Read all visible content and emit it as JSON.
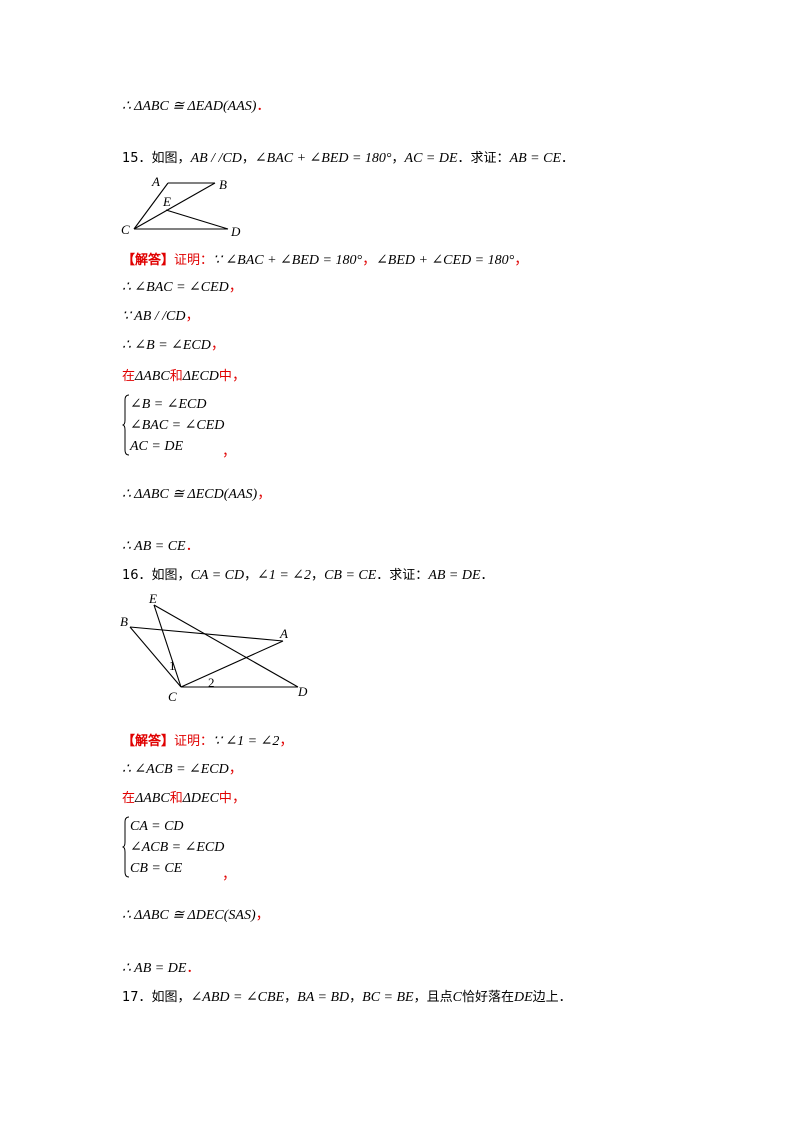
{
  "page": {
    "line_aas_prev": "∴ ΔABC ≅ ΔEAD(AAS)",
    "q15": {
      "number": "15．",
      "intro": "如图，",
      "given1": "AB / /CD",
      "given2": "∠BAC + ∠BED = 180°",
      "given3": "AC = DE",
      "prove_label": "．求证：",
      "prove": "AB = CE",
      "end": "．",
      "figure_labels": {
        "A": "A",
        "B": "B",
        "C": "C",
        "D": "D",
        "E": "E"
      },
      "answer_tag": "【解答】",
      "answer_prefix": "证明：",
      "s1a": "∵ ∠BAC + ∠BED = 180°",
      "s1b": "∠BED + ∠CED = 180°",
      "s2": "∴ ∠BAC = ∠CED",
      "s3": "∵ AB / /CD",
      "s4": "∴ ∠B = ∠ECD",
      "in_word": "在",
      "tri1": "ΔABC",
      "and_word": "和",
      "tri2": "ΔECD",
      "zhong": "中",
      "sys": [
        "∠B = ∠ECD",
        "∠BAC = ∠CED",
        "AC = DE"
      ],
      "concl": "∴ ΔABC ≅ ΔECD(AAS)",
      "final": "∴ AB = CE"
    },
    "q16": {
      "number": "16．",
      "intro": "如图，",
      "given1": "CA = CD",
      "given2": "∠1 = ∠2",
      "given3": "CB = CE",
      "prove_label": "．求证：",
      "prove": "AB = DE",
      "end": "．",
      "figure_labels": {
        "A": "A",
        "B": "B",
        "C": "C",
        "D": "D",
        "E": "E",
        "one": "1",
        "two": "2"
      },
      "answer_tag": "【解答】",
      "answer_prefix": "证明：",
      "s1": "∵ ∠1 = ∠2",
      "s2": "∴ ∠ACB = ∠ECD",
      "in_word": "在",
      "tri1": "ΔABC",
      "and_word": "和",
      "tri2": "ΔDEC",
      "zhong": "中",
      "sys": [
        "CA = CD",
        "∠ACB = ∠ECD",
        "CB = CE"
      ],
      "concl": "∴ ΔABC ≅ ΔDEC(SAS)",
      "final": "∴ AB = DE"
    },
    "q17": {
      "number": "17．",
      "intro": "如图，",
      "given1": "∠ABD = ∠CBE",
      "given2": "BA = BD",
      "given3": "BC = BE",
      "text1": "，且点",
      "point": "C",
      "text2": "恰好落在",
      "seg": "DE",
      "text3": "边上．"
    },
    "punct": {
      "comma": "，",
      "period": "．"
    }
  }
}
